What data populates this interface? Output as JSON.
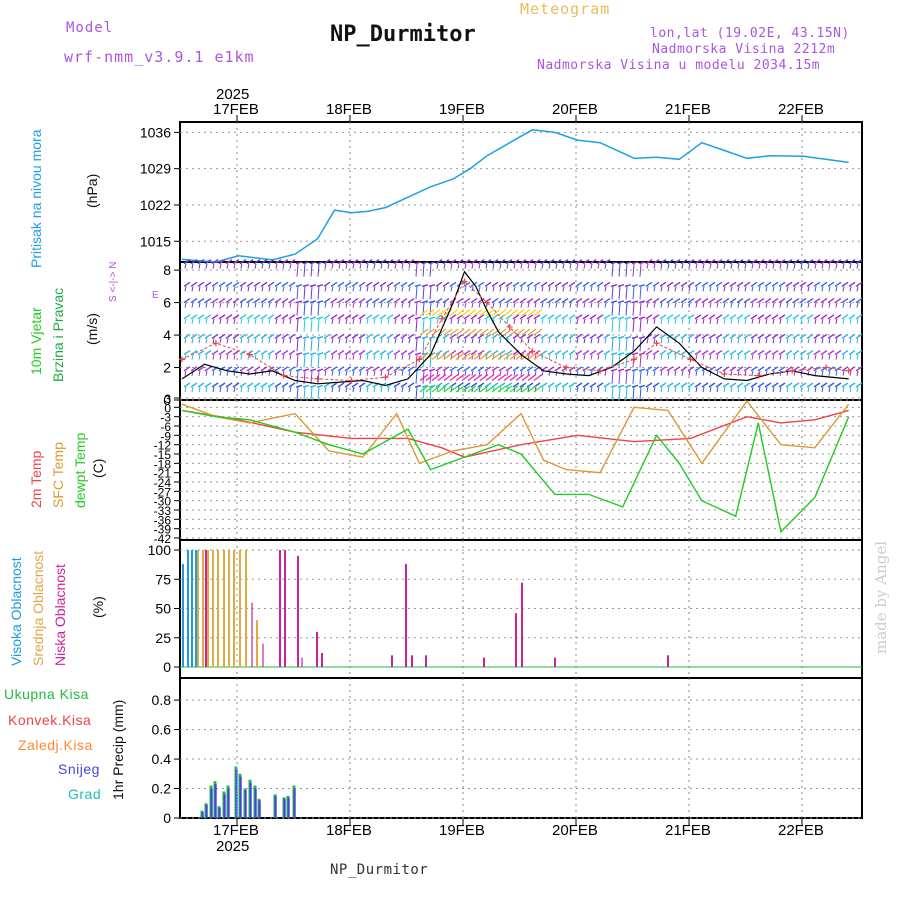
{
  "header": {
    "model_label": "Model",
    "model_name": "wrf-nmm_v3.9.1 e1km",
    "title": "NP_Durmitor",
    "subtitle": "Meteogram",
    "location": "lon,lat (19.02E, 43.15N)",
    "elevation": "Nadmorska Visina 2212m",
    "model_elevation": "Nadmorska Visina u modelu 2034.15m",
    "watermark": "made by Angel",
    "footer": "NP_Durmitor"
  },
  "colors": {
    "pressure": "#1ea0e6",
    "wind_label": "#22cc22",
    "wind_label2": "#22aa44",
    "temp2m": "#ee4444",
    "sfc": "#dd9933",
    "dewpt": "#22cc22",
    "high_cloud": "#2299dd",
    "mid_cloud": "#ddaa44",
    "low_cloud": "#cc2299",
    "total_rain": "#22bb44",
    "conv_rain": "#ee4444",
    "frz_rain": "#ff8833",
    "snow": "#4444dd",
    "graupel": "#22bbbb",
    "header_purple": "#aa55dd",
    "header_orange": "#eebb55",
    "wind_speed": "#000000",
    "wind_gust": "#ee4444"
  },
  "axes": {
    "dates": [
      "17FEB",
      "18FEB",
      "19FEB",
      "20FEB",
      "21FEB",
      "22FEB"
    ],
    "year": "2025"
  },
  "panels": {
    "pressure": {
      "label": "Pritisak na nivou mora",
      "unit": "(hPa)",
      "ticks": [
        "1036",
        "1029",
        "1022",
        "1015"
      ]
    },
    "wind": {
      "label1": "10m Vjetar",
      "label2": "Brzina i Pravac",
      "unit": "(m/s)",
      "compass": "N <-|-> E S W",
      "ticks": [
        "8",
        "6",
        "4",
        "2",
        "0"
      ]
    },
    "temp": {
      "label1": "2m Temp",
      "label2": "SFC Temp",
      "label3": "dewpt Temp",
      "unit": "(C)",
      "ticks": [
        "3",
        "0",
        "-3",
        "-6",
        "-9",
        "-12",
        "-15",
        "-18",
        "-21",
        "-24",
        "-27",
        "-30",
        "-33",
        "-36",
        "-39",
        "-42"
      ]
    },
    "cloud": {
      "label1": "Visoka Oblacnost",
      "label2": "Srednja Oblacnost",
      "label3": "Niska Oblacnost",
      "unit": "(%)",
      "ticks": [
        "100",
        "75",
        "50",
        "25",
        "0"
      ]
    },
    "precip": {
      "legend": [
        "Ukupna Kisa",
        "Konvek.Kisa",
        "Zaledj.Kisa",
        "Snijeg",
        "Grad"
      ],
      "unit": "1hr Precip (mm)",
      "ticks": [
        "0.8",
        "0.6",
        "0.4",
        "0.2",
        "0"
      ]
    }
  },
  "chart_data": [
    {
      "type": "line",
      "title": "",
      "ylabel": "(hPa)",
      "ylim": [
        1011,
        1038
      ],
      "series": [
        {
          "name": "Pritisak na nivou mora",
          "x_days": [
            0,
            0.3,
            0.5,
            0.8,
            1.0,
            1.2,
            1.35,
            1.5,
            1.65,
            1.8,
            2.0,
            2.2,
            2.4,
            2.55,
            2.7,
            2.9,
            3.1,
            3.3,
            3.5,
            3.7,
            3.9,
            4.0,
            4.2,
            4.4,
            4.6,
            4.8,
            5.0,
            5.2,
            5.5,
            5.9
          ],
          "values": [
            1011.5,
            1011.0,
            1012.2,
            1011.4,
            1012.5,
            1015.5,
            1021.0,
            1020.5,
            1020.8,
            1021.5,
            1023.5,
            1025.5,
            1027.0,
            1029.0,
            1031.5,
            1034.0,
            1036.5,
            1036.0,
            1034.5,
            1034.0,
            1032.0,
            1031.0,
            1031.2,
            1030.8,
            1034.0,
            1032.5,
            1031.0,
            1031.5,
            1031.4,
            1030.2
          ]
        }
      ]
    },
    {
      "type": "line",
      "title": "",
      "ylabel": "(m/s)",
      "ylim": [
        0,
        8.5
      ],
      "series": [
        {
          "name": "speed",
          "x_days": [
            0,
            0.2,
            0.4,
            0.6,
            0.8,
            1.0,
            1.2,
            1.4,
            1.6,
            1.8,
            2.0,
            2.2,
            2.4,
            2.5,
            2.6,
            2.7,
            2.8,
            3.0,
            3.2,
            3.4,
            3.6,
            3.8,
            4.0,
            4.2,
            4.4,
            4.6,
            4.8,
            5.0,
            5.2,
            5.4,
            5.6,
            5.9
          ],
          "values": [
            1.3,
            2.2,
            1.8,
            1.6,
            1.8,
            1.2,
            1.0,
            1.1,
            1.2,
            0.9,
            1.3,
            2.8,
            6.0,
            7.9,
            7.0,
            5.5,
            4.2,
            2.8,
            1.8,
            1.6,
            1.5,
            2.0,
            3.0,
            4.5,
            3.5,
            2.0,
            1.3,
            1.2,
            1.6,
            1.8,
            1.5,
            1.3
          ]
        },
        {
          "name": "gust",
          "x_days": [
            0,
            0.3,
            0.6,
            0.9,
            1.2,
            1.5,
            1.8,
            2.1,
            2.3,
            2.5,
            2.7,
            2.9,
            3.1,
            3.4,
            3.7,
            4.0,
            4.2,
            4.5,
            4.8,
            5.1,
            5.4,
            5.7,
            5.9
          ],
          "values": [
            2.5,
            3.5,
            2.8,
            1.5,
            1.3,
            1.2,
            1.4,
            2.5,
            5.0,
            7.3,
            6.0,
            4.5,
            3.0,
            2.0,
            1.8,
            2.5,
            3.5,
            2.5,
            1.6,
            1.5,
            1.8,
            2.0,
            1.8
          ]
        }
      ]
    },
    {
      "type": "line",
      "title": "",
      "ylabel": "(C)",
      "ylim": [
        -42,
        3
      ],
      "series": [
        {
          "name": "2m Temp",
          "x_days": [
            0,
            0.5,
            1.0,
            1.5,
            2.0,
            2.3,
            2.5,
            3.0,
            3.5,
            4.0,
            4.5,
            5.0,
            5.3,
            5.6,
            5.9
          ],
          "values": [
            -1,
            -4,
            -8,
            -10,
            -10,
            -13,
            -16,
            -12,
            -9,
            -11,
            -10,
            -3,
            -5,
            -4,
            -1
          ]
        },
        {
          "name": "SFC Temp",
          "x_days": [
            0,
            0.3,
            0.6,
            1.0,
            1.3,
            1.6,
            1.9,
            2.1,
            2.4,
            2.7,
            3.0,
            3.2,
            3.4,
            3.7,
            4.0,
            4.3,
            4.6,
            5.0,
            5.3,
            5.6,
            5.9
          ],
          "values": [
            1,
            -3,
            -5,
            -2,
            -14,
            -16,
            -2,
            -18,
            -14,
            -12,
            -2,
            -17,
            -20,
            -21,
            0,
            -1,
            -18,
            2,
            -12,
            -13,
            1
          ]
        },
        {
          "name": "dewpt Temp",
          "x_days": [
            0,
            0.3,
            0.6,
            1.0,
            1.3,
            1.6,
            2.0,
            2.2,
            2.5,
            2.8,
            3.0,
            3.3,
            3.6,
            3.9,
            4.2,
            4.4,
            4.6,
            4.9,
            5.1,
            5.3,
            5.6,
            5.9
          ],
          "values": [
            -1,
            -3,
            -4,
            -8,
            -12,
            -15,
            -7,
            -20,
            -16,
            -12,
            -15,
            -28,
            -28,
            -32,
            -9,
            -18,
            -30,
            -35,
            -5,
            -40,
            -29,
            -3
          ]
        }
      ]
    },
    {
      "type": "bar",
      "title": "",
      "ylabel": "(%)",
      "ylim": [
        0,
        100
      ],
      "series": [
        {
          "name": "Visoka Oblacnost",
          "values": [
            88,
            100,
            100,
            100
          ]
        },
        {
          "name": "Srednja Oblacnost",
          "values": [
            100,
            100,
            100,
            100,
            100,
            100,
            100,
            100,
            100,
            100,
            40
          ]
        },
        {
          "name": "Niska Oblacnost",
          "values": [
            100,
            100,
            100,
            95,
            30,
            12,
            10,
            88,
            10,
            10,
            8,
            46,
            72,
            8,
            10
          ]
        }
      ]
    },
    {
      "type": "bar",
      "title": "",
      "ylabel": "1hr Precip (mm)",
      "ylim": [
        0,
        0.95
      ],
      "series": [
        {
          "name": "Ukupna Kisa",
          "values": [
            0.05,
            0.1,
            0.22,
            0.25,
            0.08,
            0.18,
            0.22,
            0.35,
            0.3,
            0.2,
            0.26,
            0.22,
            0.13,
            0.16,
            0.14,
            0.15,
            0.22
          ]
        },
        {
          "name": "Snijeg",
          "values": [
            0.04,
            0.09,
            0.2,
            0.23,
            0.07,
            0.16,
            0.2,
            0.33,
            0.28,
            0.19,
            0.24,
            0.2,
            0.12,
            0.15,
            0.13,
            0.14,
            0.2
          ]
        }
      ]
    }
  ]
}
